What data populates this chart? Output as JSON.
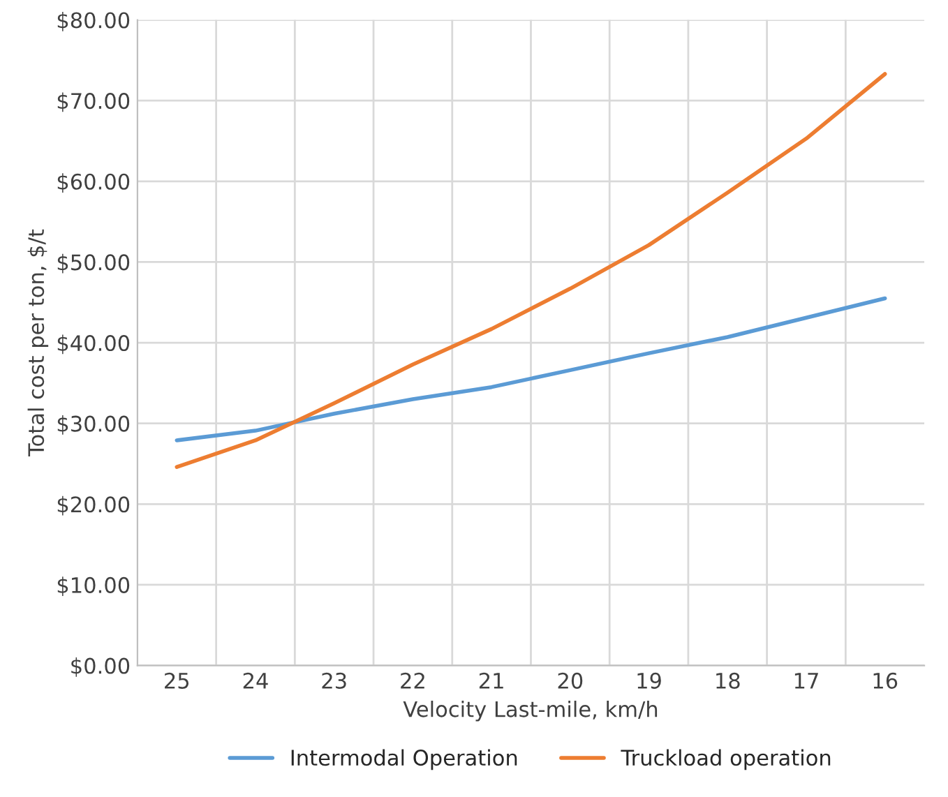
{
  "chart_data": {
    "type": "line",
    "xlabel": "Velocity Last-mile, km/h",
    "ylabel": "Total cost per ton, $/t",
    "categories": [
      "25",
      "24",
      "23",
      "22",
      "21",
      "20",
      "19",
      "18",
      "17",
      "16"
    ],
    "series": [
      {
        "name": "Intermodal Operation",
        "color": "#5b9bd5",
        "values": [
          27.9,
          29.1,
          31.2,
          33.0,
          34.5,
          36.6,
          38.7,
          40.7,
          43.1,
          45.5
        ]
      },
      {
        "name": "Truckload operation",
        "color": "#ed7d31",
        "values": [
          24.6,
          27.9,
          32.5,
          37.3,
          41.7,
          46.7,
          52.1,
          58.6,
          65.3,
          73.3
        ]
      }
    ],
    "ylim": [
      0,
      80
    ],
    "yticks": [
      {
        "value": 0,
        "label": "$0.00"
      },
      {
        "value": 10,
        "label": "$10.00"
      },
      {
        "value": 20,
        "label": "$20.00"
      },
      {
        "value": 30,
        "label": "$30.00"
      },
      {
        "value": 40,
        "label": "$40.00"
      },
      {
        "value": 50,
        "label": "$50.00"
      },
      {
        "value": 60,
        "label": "$60.00"
      },
      {
        "value": 70,
        "label": "$70.00"
      },
      {
        "value": 80,
        "label": "$80.00"
      }
    ],
    "grid": true,
    "legend": "bottom",
    "marker": "none",
    "line_style": "solid"
  }
}
